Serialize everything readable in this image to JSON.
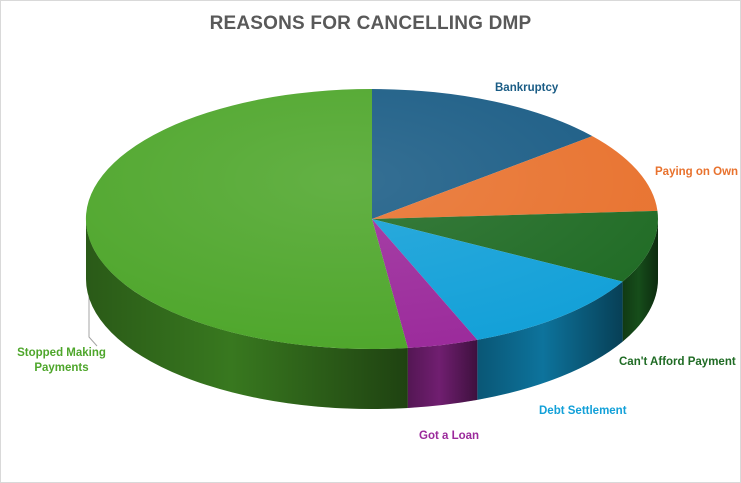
{
  "chart_data": {
    "type": "pie",
    "style": "3d",
    "title": "REASONS FOR CANCELLING DMP",
    "categories": [
      "Bankruptcy",
      "Paying on Own",
      "Can't Afford Payment",
      "Debt Settlement",
      "Got a Loan",
      "Stopped Making Payments"
    ],
    "values": [
      14,
      10,
      9,
      11,
      4,
      52
    ],
    "unit": "%",
    "colors": [
      "#1a5c85",
      "#e8722e",
      "#1f6b24",
      "#12a0d8",
      "#9b2a9b",
      "#4ea62b"
    ],
    "legend": "none",
    "data_labels": "category name"
  }
}
